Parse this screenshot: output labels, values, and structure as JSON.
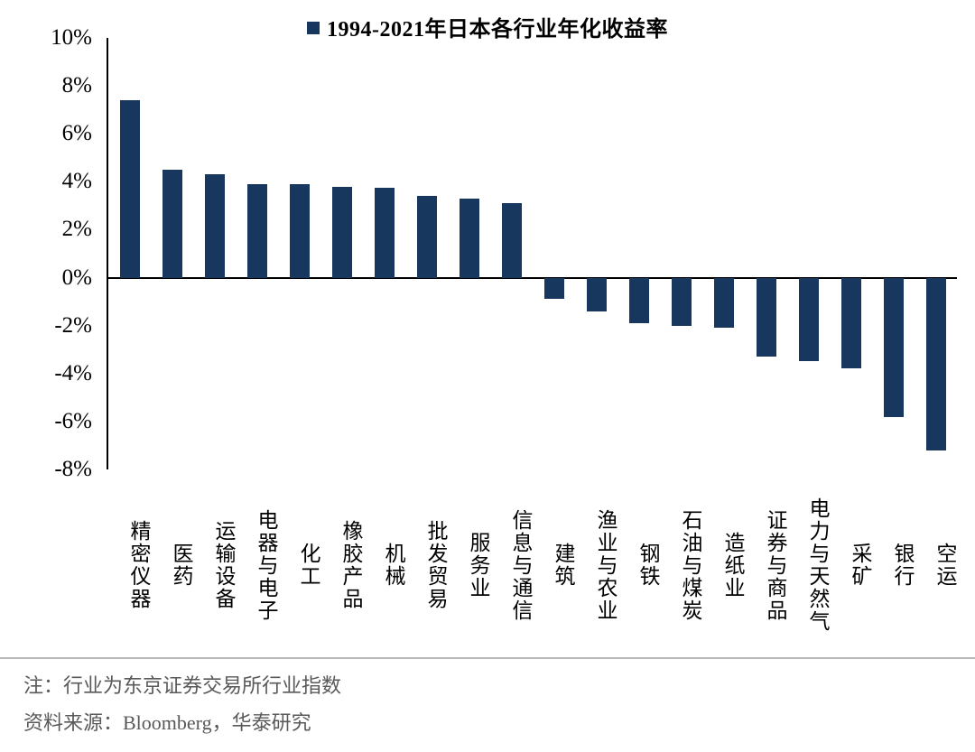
{
  "chart_data": {
    "type": "bar",
    "title": "1994-2021年日本各行业年化收益率",
    "categories": [
      "精密仪器",
      "医药",
      "运输设备",
      "电器与电子",
      "化工",
      "橡胶产品",
      "机械",
      "批发贸易",
      "服务业",
      "信息与通信",
      "建筑",
      "渔业与农业",
      "钢铁",
      "石油与煤炭",
      "造纸业",
      "证券与商品",
      "电力与天然气",
      "采矿",
      "银行",
      "空运"
    ],
    "values": [
      7.4,
      4.5,
      4.3,
      3.9,
      3.9,
      3.8,
      3.75,
      3.4,
      3.3,
      3.1,
      -0.9,
      -1.4,
      -1.9,
      -2.0,
      -2.1,
      -3.3,
      -3.5,
      -3.8,
      -5.8,
      -7.2
    ],
    "ylabel": "",
    "xlabel": "",
    "ylim": [
      -8,
      10
    ],
    "yticks": [
      10,
      8,
      6,
      4,
      2,
      0,
      -2,
      -4,
      -6,
      -8
    ],
    "ytick_labels": [
      "10%",
      "8%",
      "6%",
      "4%",
      "2%",
      "0%",
      "-2%",
      "-4%",
      "-6%",
      "-8%"
    ],
    "grid": false,
    "legend_position": "top",
    "bar_color": "#17375E"
  },
  "notes": [
    "注：行业为东京证券交易所行业指数",
    "资料来源：Bloomberg，华泰研究"
  ]
}
